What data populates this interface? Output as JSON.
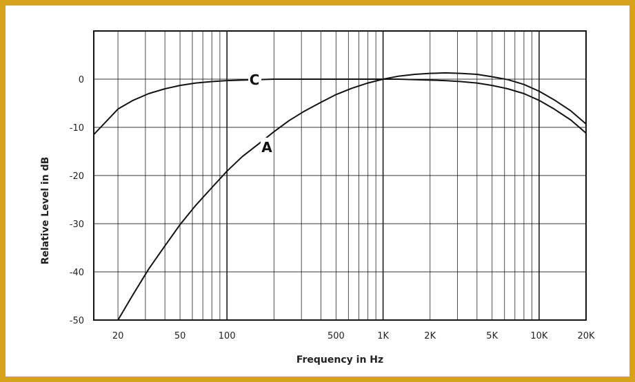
{
  "colors": {
    "frame": "#d9a21b",
    "ink": "#111111",
    "background": "#ffffff"
  },
  "chart_data": {
    "type": "line",
    "title": "",
    "xlabel": "Frequency in Hz",
    "ylabel": "Relative Level in dB",
    "x_scale": "log",
    "xlim": [
      14,
      20000
    ],
    "ylim": [
      -50,
      10
    ],
    "x_ticks": [
      {
        "value": 20,
        "label": "20"
      },
      {
        "value": 50,
        "label": "50"
      },
      {
        "value": 100,
        "label": "100"
      },
      {
        "value": 500,
        "label": "500"
      },
      {
        "value": 1000,
        "label": "1K"
      },
      {
        "value": 2000,
        "label": "2K"
      },
      {
        "value": 5000,
        "label": "5K"
      },
      {
        "value": 10000,
        "label": "10K"
      },
      {
        "value": 20000,
        "label": "20K"
      }
    ],
    "y_ticks": [
      {
        "value": 0,
        "label": "0"
      },
      {
        "value": -10,
        "label": "-10"
      },
      {
        "value": -20,
        "label": "-20"
      },
      {
        "value": -30,
        "label": "-30"
      },
      {
        "value": -40,
        "label": "-40"
      },
      {
        "value": -50,
        "label": "-50"
      }
    ],
    "grid": true,
    "series": [
      {
        "name": "A",
        "x": [
          20,
          25,
          31.5,
          40,
          50,
          63,
          80,
          100,
          125,
          160,
          200,
          250,
          315,
          400,
          500,
          630,
          800,
          1000,
          1250,
          1600,
          2000,
          2500,
          3150,
          4000,
          5000,
          6300,
          8000,
          10000,
          12500,
          16000,
          20000
        ],
        "y": [
          -50.5,
          -44.7,
          -39.4,
          -34.6,
          -30.2,
          -26.2,
          -22.5,
          -19.1,
          -16.1,
          -13.4,
          -10.9,
          -8.6,
          -6.6,
          -4.8,
          -3.2,
          -1.9,
          -0.8,
          0,
          0.6,
          1.0,
          1.2,
          1.3,
          1.2,
          1.0,
          0.5,
          -0.1,
          -1.1,
          -2.5,
          -4.3,
          -6.6,
          -9.3
        ]
      },
      {
        "name": "C",
        "x": [
          14,
          20,
          25,
          31.5,
          40,
          50,
          63,
          80,
          100,
          125,
          160,
          200,
          250,
          315,
          400,
          500,
          630,
          800,
          1000,
          1250,
          1600,
          2000,
          2500,
          3150,
          4000,
          5000,
          6300,
          8000,
          10000,
          12500,
          16000,
          20000
        ],
        "y": [
          -11.5,
          -6.2,
          -4.4,
          -3.0,
          -2.0,
          -1.3,
          -0.8,
          -0.5,
          -0.3,
          -0.2,
          -0.1,
          0,
          0,
          0,
          0,
          0,
          0,
          0,
          0,
          0,
          -0.1,
          -0.2,
          -0.3,
          -0.5,
          -0.8,
          -1.3,
          -2.0,
          -3.0,
          -4.4,
          -6.2,
          -8.5,
          -11.2
        ]
      }
    ],
    "annotations": [
      {
        "text": "C",
        "x": 150,
        "y": 0
      },
      {
        "text": "A",
        "x": 180,
        "y": -14
      }
    ]
  }
}
